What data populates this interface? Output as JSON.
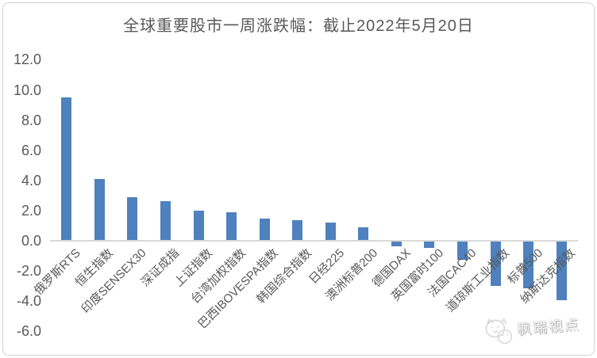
{
  "watermark": {
    "text": "枫瑞视点",
    "logo_icon": "mascot-face-logo"
  },
  "colors": {
    "bar": "#4E81BD",
    "axis_line": "#D9D9D9",
    "text": "#595959",
    "frame_border": "#D2D2D2",
    "background": "#FFFFFF"
  },
  "chart_data": {
    "type": "bar",
    "title": "全球重要股市一周涨跌幅：截止2022年5月20日",
    "categories": [
      "俄罗斯RTS",
      "恒生指数",
      "印度SENSEX30",
      "深证成指",
      "上证指数",
      "台湾加权指数",
      "巴西IBOVESPA指数",
      "韩国综合指数",
      "日经225",
      "澳洲标普200",
      "德国DAX",
      "英国富时100",
      "法国CAC40",
      "道琼斯工业指数",
      "标普500",
      "纳斯达克指数"
    ],
    "values": [
      9.5,
      4.1,
      2.9,
      2.6,
      2.0,
      1.9,
      1.45,
      1.35,
      1.2,
      0.9,
      -0.35,
      -0.45,
      -1.25,
      -3.0,
      -3.15,
      -3.95
    ],
    "xlabel": "",
    "ylabel": "",
    "ylim": [
      -6.0,
      12.0
    ],
    "ytick_step": 2.0,
    "yticks": [
      12.0,
      10.0,
      8.0,
      6.0,
      4.0,
      2.0,
      0.0,
      -2.0,
      -4.0,
      -6.0
    ],
    "ytick_labels": [
      "12.0",
      "10.0",
      "8.0",
      "6.0",
      "4.0",
      "2.0",
      "0.0",
      "-2.0",
      "-4.0",
      "-6.0"
    ],
    "grid": false,
    "legend": "none",
    "x_labels_rotation_deg": 45
  }
}
